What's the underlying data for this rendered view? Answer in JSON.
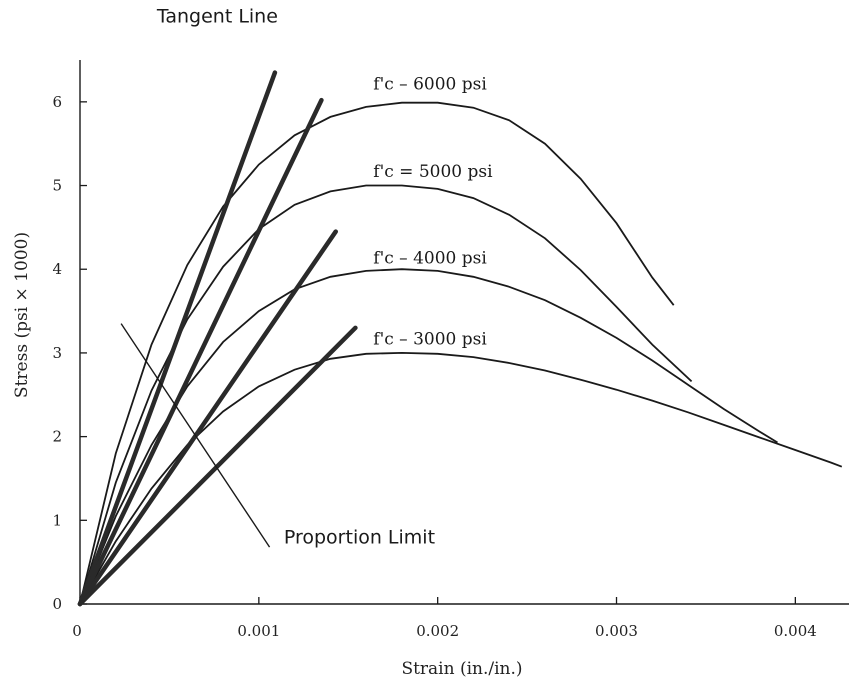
{
  "chart_data": {
    "type": "line",
    "xlabel": "Strain (in./in.)",
    "ylabel": "Stress (psi × 1000)",
    "xlim": [
      0,
      0.0043
    ],
    "ylim": [
      0,
      6.5
    ],
    "x_ticks": [
      {
        "value": 0,
        "label": "0"
      },
      {
        "value": 0.001,
        "label": "0.001"
      },
      {
        "value": 0.002,
        "label": "0.002"
      },
      {
        "value": 0.003,
        "label": "0.003"
      },
      {
        "value": 0.004,
        "label": "0.004"
      }
    ],
    "y_ticks": [
      {
        "value": 0,
        "label": "0"
      },
      {
        "value": 1,
        "label": "1"
      },
      {
        "value": 2,
        "label": "2"
      },
      {
        "value": 3,
        "label": "3"
      },
      {
        "value": 4,
        "label": "4"
      },
      {
        "value": 5,
        "label": "5"
      },
      {
        "value": 6,
        "label": "6"
      }
    ],
    "grid": false,
    "series": [
      {
        "name": "f'c – 6000 psi",
        "label_at": [
          0.00164,
          6.15
        ],
        "points": [
          [
            0,
            0
          ],
          [
            0.0002,
            1.8
          ],
          [
            0.0004,
            3.1
          ],
          [
            0.0006,
            4.05
          ],
          [
            0.0008,
            4.75
          ],
          [
            0.001,
            5.25
          ],
          [
            0.0012,
            5.6
          ],
          [
            0.0014,
            5.82
          ],
          [
            0.0016,
            5.94
          ],
          [
            0.0018,
            5.99
          ],
          [
            0.002,
            5.99
          ],
          [
            0.0022,
            5.93
          ],
          [
            0.0024,
            5.78
          ],
          [
            0.0026,
            5.5
          ],
          [
            0.0028,
            5.08
          ],
          [
            0.003,
            4.55
          ],
          [
            0.0032,
            3.9
          ],
          [
            0.00332,
            3.57
          ]
        ]
      },
      {
        "name": "f'c = 5000 psi",
        "label_at": [
          0.00164,
          5.1
        ],
        "points": [
          [
            0,
            0
          ],
          [
            0.0002,
            1.45
          ],
          [
            0.0004,
            2.55
          ],
          [
            0.0006,
            3.4
          ],
          [
            0.0008,
            4.03
          ],
          [
            0.001,
            4.48
          ],
          [
            0.0012,
            4.77
          ],
          [
            0.0014,
            4.93
          ],
          [
            0.0016,
            5.0
          ],
          [
            0.0018,
            5.0
          ],
          [
            0.002,
            4.96
          ],
          [
            0.0022,
            4.85
          ],
          [
            0.0024,
            4.65
          ],
          [
            0.0026,
            4.37
          ],
          [
            0.0028,
            3.99
          ],
          [
            0.003,
            3.55
          ],
          [
            0.0032,
            3.1
          ],
          [
            0.00342,
            2.66
          ]
        ]
      },
      {
        "name": "f'c – 4000 psi",
        "label_at": [
          0.00164,
          4.07
        ],
        "points": [
          [
            0,
            0
          ],
          [
            0.0002,
            1.05
          ],
          [
            0.0004,
            1.9
          ],
          [
            0.0006,
            2.6
          ],
          [
            0.0008,
            3.13
          ],
          [
            0.001,
            3.5
          ],
          [
            0.0012,
            3.76
          ],
          [
            0.0014,
            3.91
          ],
          [
            0.0016,
            3.98
          ],
          [
            0.0018,
            4.0
          ],
          [
            0.002,
            3.98
          ],
          [
            0.0022,
            3.91
          ],
          [
            0.0024,
            3.79
          ],
          [
            0.0026,
            3.63
          ],
          [
            0.0028,
            3.42
          ],
          [
            0.003,
            3.18
          ],
          [
            0.0032,
            2.91
          ],
          [
            0.0034,
            2.62
          ],
          [
            0.0036,
            2.33
          ],
          [
            0.0038,
            2.06
          ],
          [
            0.0039,
            1.93
          ]
        ]
      },
      {
        "name": "f'c – 3000 psi",
        "label_at": [
          0.00164,
          3.1
        ],
        "points": [
          [
            0,
            0
          ],
          [
            0.0002,
            0.75
          ],
          [
            0.0004,
            1.38
          ],
          [
            0.0006,
            1.9
          ],
          [
            0.0008,
            2.3
          ],
          [
            0.001,
            2.6
          ],
          [
            0.0012,
            2.8
          ],
          [
            0.0014,
            2.93
          ],
          [
            0.0016,
            2.99
          ],
          [
            0.0018,
            3.0
          ],
          [
            0.002,
            2.99
          ],
          [
            0.0022,
            2.95
          ],
          [
            0.0024,
            2.88
          ],
          [
            0.0026,
            2.79
          ],
          [
            0.0028,
            2.68
          ],
          [
            0.003,
            2.56
          ],
          [
            0.0032,
            2.43
          ],
          [
            0.0034,
            2.29
          ],
          [
            0.0036,
            2.14
          ],
          [
            0.0038,
            1.99
          ],
          [
            0.004,
            1.84
          ],
          [
            0.0042,
            1.69
          ],
          [
            0.00426,
            1.64
          ]
        ]
      }
    ],
    "tangent_lines": [
      {
        "from": [
          0,
          0
        ],
        "to": [
          0.00109,
          6.35
        ]
      },
      {
        "from": [
          0,
          0
        ],
        "to": [
          0.00135,
          6.02
        ]
      },
      {
        "from": [
          0,
          0
        ],
        "to": [
          0.00143,
          4.45
        ]
      },
      {
        "from": [
          0,
          0
        ],
        "to": [
          0.00154,
          3.3
        ]
      }
    ],
    "annotations": [
      {
        "text": "Tangent Line",
        "at": [
          0.00043,
          6.95
        ]
      },
      {
        "text": "Proportion Limit",
        "at": [
          0.00114,
          0.72
        ],
        "pointer": [
          [
            0.00106,
            0.68
          ],
          [
            0.00023,
            3.35
          ]
        ]
      }
    ]
  }
}
